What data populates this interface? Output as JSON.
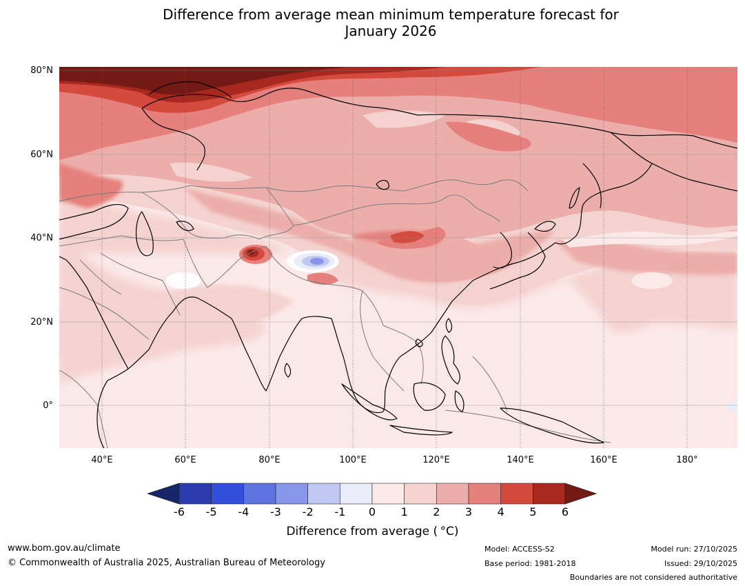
{
  "title": {
    "line1": "Difference from average mean minimum temperature forecast for",
    "line2": "January 2026"
  },
  "map": {
    "region": "Asia",
    "latitude_labels": [
      "80°N",
      "60°N",
      "40°N",
      "20°N",
      "0°"
    ],
    "longitude_labels": [
      "40°E",
      "60°E",
      "80°E",
      "100°E",
      "120°E",
      "140°E",
      "160°E",
      "180°"
    ],
    "anomaly_regions": [
      {
        "area": "Arctic coast 60-90°E",
        "anomaly_c": "5 to 6+"
      },
      {
        "area": "Western Himalaya",
        "anomaly_c": "4 to 6"
      },
      {
        "area": "Central Tibetan Plateau",
        "anomaly_c": "-3 to 0"
      },
      {
        "area": "North China near 110°E 40°N",
        "anomaly_c": "4 to 5"
      },
      {
        "area": "Tropics and equatorial oceans",
        "anomaly_c": "0 to 1"
      }
    ]
  },
  "colorbar": {
    "ticks": [
      "-6",
      "-5",
      "-4",
      "-3",
      "-2",
      "-1",
      "0",
      "1",
      "2",
      "3",
      "4",
      "5",
      "6"
    ],
    "colors": [
      "#17256b",
      "#2a3cae",
      "#2f4ed9",
      "#5d74e0",
      "#8796e8",
      "#c0c8f2",
      "#eaecfa",
      "#fbe9e8",
      "#f4d2cf",
      "#ecaeaa",
      "#e5807c",
      "#d44a3f",
      "#a8271f",
      "#741a14"
    ],
    "label": "Difference from average ( °C)"
  },
  "footer": {
    "website": "www.bom.gov.au/climate",
    "copyright": "© Commonwealth of Australia 2025, Australian Bureau of Meteorology",
    "model": "Model: ACCESS-S2",
    "base_period": "Base period: 1981-2018",
    "model_run": "Model run: 27/10/2025",
    "issued": "Issued: 29/10/2025",
    "disclaimer": "Boundaries are not considered authoritative"
  }
}
